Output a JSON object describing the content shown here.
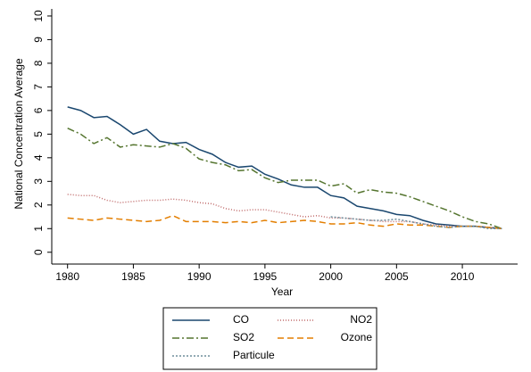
{
  "chart_data": {
    "type": "line",
    "y_label": "National Concentration Average",
    "x_label": "Year",
    "x": [
      1980,
      1981,
      1982,
      1983,
      1984,
      1985,
      1986,
      1987,
      1988,
      1989,
      1990,
      1991,
      1992,
      1993,
      1994,
      1995,
      1996,
      1997,
      1998,
      1999,
      2000,
      2001,
      2002,
      2003,
      2004,
      2005,
      2006,
      2007,
      2008,
      2009,
      2010,
      2011,
      2012,
      2013
    ],
    "series": [
      {
        "name": "CO",
        "color": "#1a476f",
        "dash": "none",
        "values": [
          6.15,
          6.0,
          5.7,
          5.75,
          5.4,
          5.0,
          5.2,
          4.7,
          4.6,
          4.65,
          4.35,
          4.15,
          3.8,
          3.6,
          3.65,
          3.3,
          3.1,
          2.85,
          2.75,
          2.75,
          2.4,
          2.3,
          1.95,
          1.85,
          1.75,
          1.6,
          1.55,
          1.35,
          1.2,
          1.15,
          1.1,
          1.1,
          1.05,
          1.0
        ]
      },
      {
        "name": "NO2",
        "color": "#c06a6a",
        "dash": "1 2",
        "values": [
          2.45,
          2.4,
          2.4,
          2.2,
          2.1,
          2.15,
          2.2,
          2.2,
          2.25,
          2.2,
          2.1,
          2.05,
          1.85,
          1.75,
          1.8,
          1.8,
          1.7,
          1.6,
          1.5,
          1.55,
          1.45,
          1.45,
          1.4,
          1.35,
          1.3,
          1.3,
          1.3,
          1.2,
          1.15,
          1.1,
          1.1,
          1.1,
          1.05,
          1.0
        ]
      },
      {
        "name": "SO2",
        "color": "#55752f",
        "dash": "8 3 2 3",
        "values": [
          5.25,
          5.0,
          4.6,
          4.85,
          4.45,
          4.55,
          4.5,
          4.45,
          4.6,
          4.4,
          3.95,
          3.8,
          3.7,
          3.45,
          3.5,
          3.15,
          2.95,
          3.05,
          3.05,
          3.05,
          2.8,
          2.9,
          2.5,
          2.65,
          2.55,
          2.5,
          2.35,
          2.15,
          1.95,
          1.75,
          1.5,
          1.3,
          1.2,
          1.0
        ]
      },
      {
        "name": "Ozone",
        "color": "#e37e00",
        "dash": "7 4",
        "values": [
          1.45,
          1.4,
          1.35,
          1.45,
          1.4,
          1.35,
          1.3,
          1.35,
          1.55,
          1.3,
          1.3,
          1.3,
          1.25,
          1.3,
          1.25,
          1.35,
          1.25,
          1.3,
          1.35,
          1.3,
          1.2,
          1.2,
          1.25,
          1.15,
          1.1,
          1.2,
          1.15,
          1.15,
          1.1,
          1.05,
          1.1,
          1.1,
          1.05,
          1.0
        ]
      },
      {
        "name": "Particule",
        "color": "#6e8e9c",
        "dash": "2 2",
        "values": [
          null,
          null,
          null,
          null,
          null,
          null,
          null,
          null,
          null,
          null,
          null,
          null,
          null,
          null,
          null,
          null,
          null,
          null,
          null,
          null,
          1.5,
          1.45,
          1.4,
          1.35,
          1.35,
          1.4,
          1.3,
          1.2,
          1.1,
          1.05,
          1.1,
          1.1,
          1.0,
          1.0
        ]
      }
    ],
    "xlim": [
      1978.8,
      2014.2
    ],
    "xticks": [
      1980,
      1985,
      1990,
      1995,
      2000,
      2005,
      2010
    ],
    "ylim": [
      -0.5,
      10.3
    ],
    "yticks": [
      0,
      1,
      2,
      3,
      4,
      5,
      6,
      7,
      8,
      9,
      10
    ],
    "grid": false,
    "legend": "bottom"
  }
}
